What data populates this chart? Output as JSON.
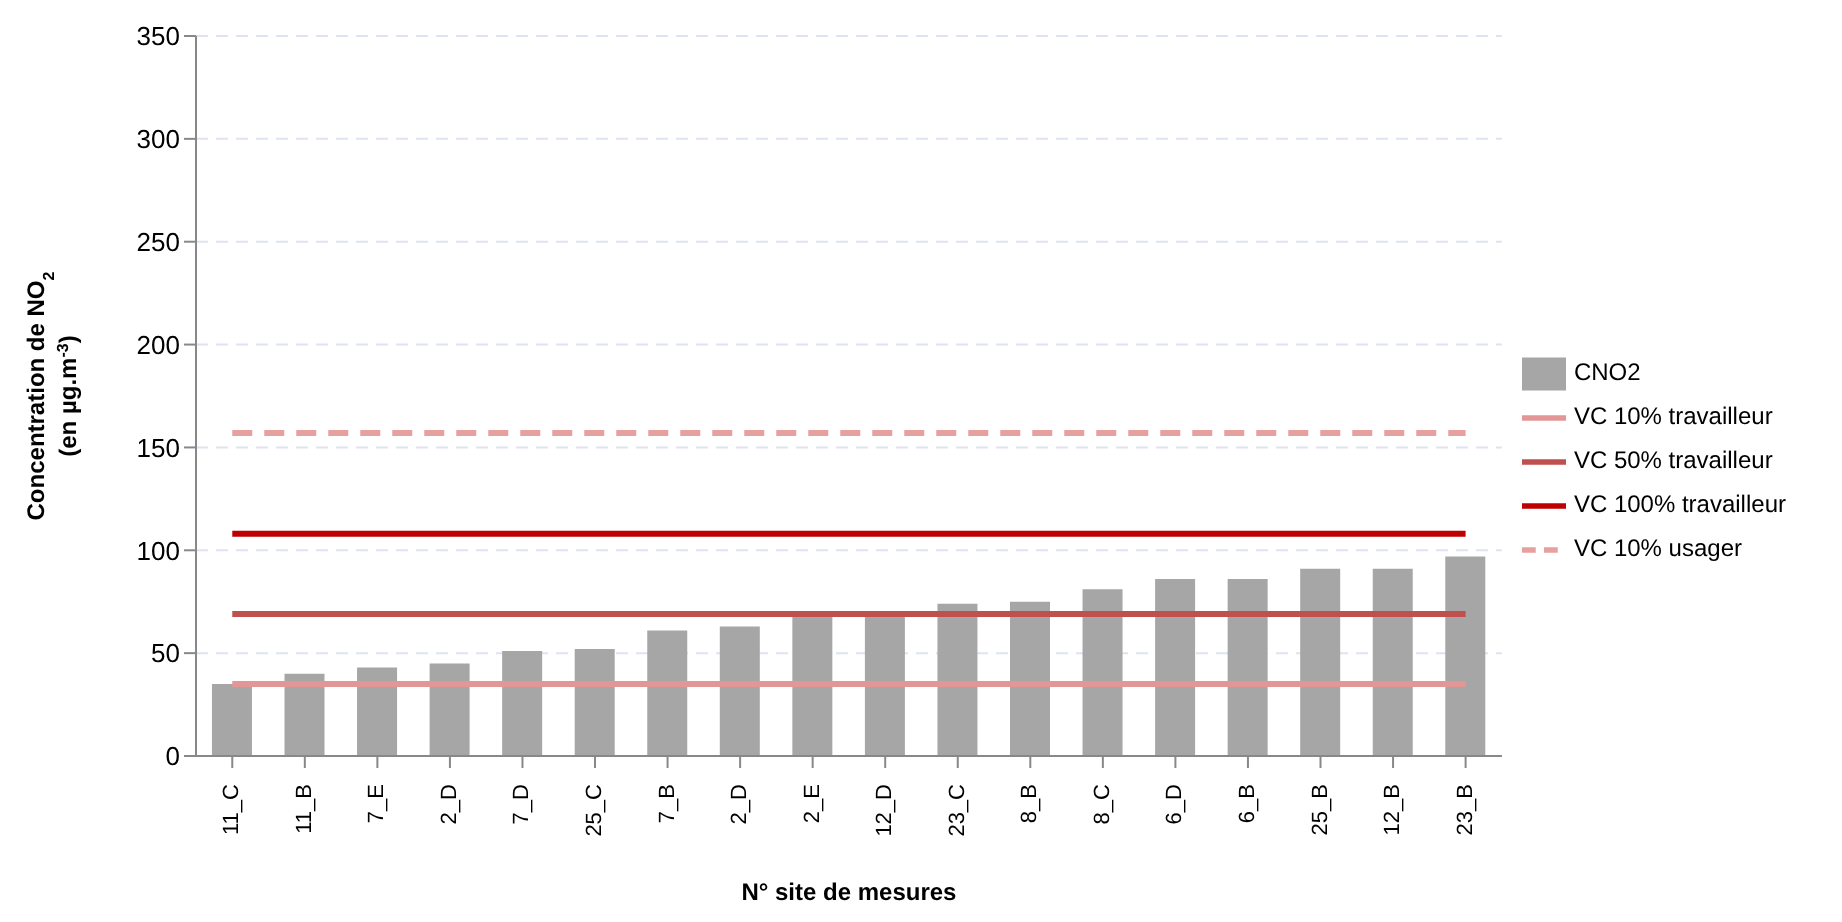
{
  "chart_data": {
    "type": "bar",
    "xlabel": "N° site de mesures",
    "ylabel": "Concentration de NO$_{2}$\n(en µg.m$^{-3}$)",
    "categories": [
      "11_C",
      "11_B",
      "7_E",
      "2_D",
      "7_D",
      "25_C",
      "7_B",
      "2_D",
      "2_E",
      "12_D",
      "23_C",
      "8_B",
      "8_C",
      "6_D",
      "6_B",
      "25_B",
      "12_B",
      "23_B"
    ],
    "series": [
      {
        "name": "CNO2",
        "color": "#a6a6a6",
        "values": [
          35,
          40,
          43,
          45,
          51,
          52,
          61,
          63,
          69,
          69,
          74,
          75,
          81,
          86,
          86,
          91,
          91,
          97
        ]
      },
      {
        "name": "VC 10% travailleur",
        "type": "line",
        "color": "#e39696",
        "line_style": "solid",
        "values": [
          35,
          35,
          35,
          35,
          35,
          35,
          35,
          35,
          35,
          35,
          35,
          35,
          35,
          35,
          35,
          35,
          35,
          35
        ]
      },
      {
        "name": "VC 50% travailleur",
        "type": "line",
        "color": "#c0504d",
        "line_style": "solid",
        "values": [
          69,
          69,
          69,
          69,
          69,
          69,
          69,
          69,
          69,
          69,
          69,
          69,
          69,
          69,
          69,
          69,
          69,
          69
        ]
      },
      {
        "name": "VC 100% travailleur",
        "type": "line",
        "color": "#c00000",
        "line_style": "solid",
        "values": [
          108,
          108,
          108,
          108,
          108,
          108,
          108,
          108,
          108,
          108,
          108,
          108,
          108,
          108,
          108,
          108,
          108,
          108
        ]
      },
      {
        "name": "VC 10% usager",
        "type": "line",
        "color": "#e6a0a0",
        "line_style": "dashed",
        "values": [
          157,
          157,
          157,
          157,
          157,
          157,
          157,
          157,
          157,
          157,
          157,
          157,
          157,
          157,
          157,
          157,
          157,
          157
        ]
      }
    ],
    "ylim": [
      0,
      350
    ],
    "yticks": [
      0,
      50,
      100,
      150,
      200,
      250,
      300,
      350
    ],
    "grid": "y",
    "legend": "right",
    "marker": "none"
  }
}
